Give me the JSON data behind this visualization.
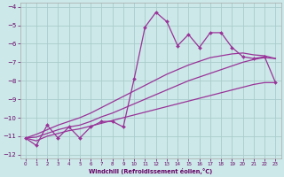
{
  "xlabel": "Windchill (Refroidissement éolien,°C)",
  "bg_color": "#cce8e8",
  "grid_color": "#aacccc",
  "line_color": "#993399",
  "xlim": [
    -0.5,
    23.5
  ],
  "ylim": [
    -12.2,
    -3.8
  ],
  "xticks": [
    0,
    1,
    2,
    3,
    4,
    5,
    6,
    7,
    8,
    9,
    10,
    11,
    12,
    13,
    14,
    15,
    16,
    17,
    18,
    19,
    20,
    21,
    22,
    23
  ],
  "yticks": [
    -12,
    -11,
    -10,
    -9,
    -8,
    -7,
    -6,
    -5,
    -4
  ],
  "y_main": [
    -11.1,
    -11.5,
    -10.4,
    -11.1,
    -10.5,
    -11.1,
    -10.5,
    -10.2,
    -10.2,
    -10.5,
    -7.9,
    -5.1,
    -4.3,
    -4.8,
    -6.1,
    -5.5,
    -6.2,
    -5.4,
    -5.4,
    -6.2,
    -6.7,
    -6.8,
    -6.7,
    -8.1
  ],
  "y_line1": [
    -11.1,
    -11.25,
    -11.0,
    -10.85,
    -10.7,
    -10.6,
    -10.45,
    -10.3,
    -10.15,
    -10.0,
    -9.85,
    -9.7,
    -9.55,
    -9.4,
    -9.25,
    -9.1,
    -8.95,
    -8.8,
    -8.65,
    -8.5,
    -8.35,
    -8.2,
    -8.1,
    -8.1
  ],
  "y_line2": [
    -11.1,
    -11.05,
    -10.85,
    -10.65,
    -10.5,
    -10.4,
    -10.2,
    -9.95,
    -9.75,
    -9.5,
    -9.25,
    -9.0,
    -8.75,
    -8.5,
    -8.25,
    -8.0,
    -7.8,
    -7.6,
    -7.4,
    -7.2,
    -7.0,
    -6.85,
    -6.75,
    -6.8
  ],
  "y_line3": [
    -11.1,
    -10.9,
    -10.65,
    -10.4,
    -10.2,
    -10.0,
    -9.75,
    -9.45,
    -9.15,
    -8.85,
    -8.55,
    -8.25,
    -7.95,
    -7.65,
    -7.4,
    -7.15,
    -6.95,
    -6.75,
    -6.65,
    -6.55,
    -6.5,
    -6.6,
    -6.65,
    -6.8
  ]
}
